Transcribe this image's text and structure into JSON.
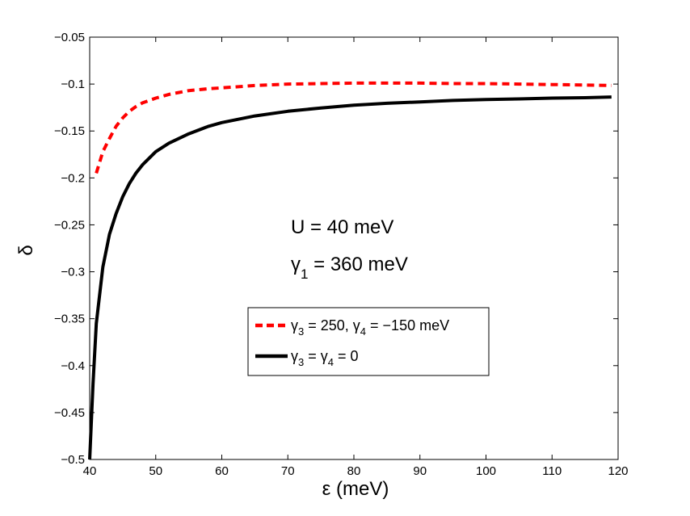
{
  "chart_data": {
    "type": "line",
    "title": "",
    "xlabel": "ε (meV)",
    "ylabel": "δ",
    "xlim": [
      40,
      120
    ],
    "ylim": [
      -0.5,
      -0.05
    ],
    "xticks": [
      40,
      50,
      60,
      70,
      80,
      90,
      100,
      110,
      120
    ],
    "yticks": [
      -0.5,
      -0.45,
      -0.4,
      -0.35,
      -0.3,
      -0.25,
      -0.2,
      -0.15,
      -0.1,
      -0.05
    ],
    "xtick_labels": [
      "40",
      "50",
      "60",
      "70",
      "80",
      "90",
      "100",
      "110",
      "120"
    ],
    "ytick_labels": [
      "−0.5",
      "−0.45",
      "−0.4",
      "−0.35",
      "−0.3",
      "−0.25",
      "−0.2",
      "−0.15",
      "−0.1",
      "−0.05"
    ],
    "grid": false,
    "legend_position": "center",
    "annotations": [
      {
        "text": "U = 40 meV"
      },
      {
        "text_main": "γ",
        "text_sub": "1",
        "text_rest": " = 360 meV"
      }
    ],
    "series": [
      {
        "name": "γ3 = 250, γ4 = −150 meV",
        "legend_parts": [
          "γ",
          "3",
          " = 250, γ",
          "4",
          " = −150 meV"
        ],
        "color": "#ff0000",
        "style": "dashed",
        "x": [
          41,
          42,
          43,
          44,
          45,
          46,
          47,
          48,
          50,
          52,
          55,
          58,
          60,
          65,
          70,
          75,
          80,
          85,
          90,
          95,
          100,
          105,
          110,
          115,
          119
        ],
        "y": [
          -0.195,
          -0.172,
          -0.158,
          -0.145,
          -0.136,
          -0.129,
          -0.124,
          -0.12,
          -0.115,
          -0.111,
          -0.107,
          -0.105,
          -0.104,
          -0.1015,
          -0.1,
          -0.0995,
          -0.099,
          -0.099,
          -0.099,
          -0.0995,
          -0.0995,
          -0.1,
          -0.1005,
          -0.101,
          -0.1015
        ]
      },
      {
        "name": "γ3 = γ4 = 0",
        "legend_parts": [
          "γ",
          "3",
          " = γ",
          "4",
          " = 0"
        ],
        "color": "#000000",
        "style": "solid",
        "x": [
          40,
          40.5,
          41,
          42,
          43,
          44,
          45,
          46,
          47,
          48,
          50,
          52,
          55,
          58,
          60,
          65,
          70,
          75,
          80,
          85,
          90,
          95,
          100,
          105,
          110,
          115,
          119
        ],
        "y": [
          -0.5,
          -0.42,
          -0.355,
          -0.295,
          -0.26,
          -0.238,
          -0.22,
          -0.206,
          -0.195,
          -0.186,
          -0.172,
          -0.163,
          -0.153,
          -0.145,
          -0.141,
          -0.134,
          -0.129,
          -0.1255,
          -0.1225,
          -0.1205,
          -0.119,
          -0.1175,
          -0.1165,
          -0.1158,
          -0.115,
          -0.1145,
          -0.1138
        ]
      }
    ]
  }
}
